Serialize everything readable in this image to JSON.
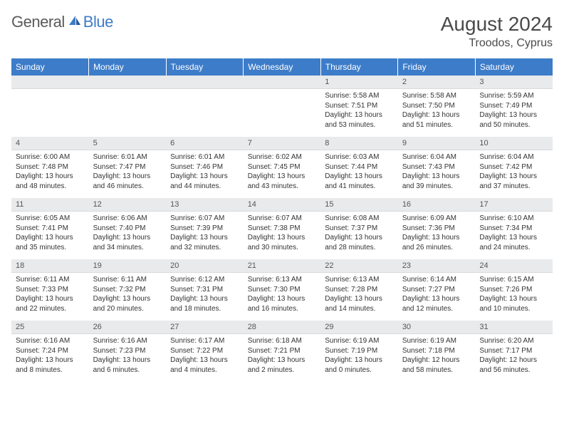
{
  "logo": {
    "text1": "General",
    "text2": "Blue"
  },
  "title": {
    "month": "August 2024",
    "location": "Troodos, Cyprus"
  },
  "colors": {
    "header_bg": "#3d7cc9",
    "daynum_bg": "#e8eaec",
    "text": "#333333"
  },
  "weekdays": [
    "Sunday",
    "Monday",
    "Tuesday",
    "Wednesday",
    "Thursday",
    "Friday",
    "Saturday"
  ],
  "weeks": [
    [
      null,
      null,
      null,
      null,
      {
        "n": "1",
        "sunrise": "Sunrise: 5:58 AM",
        "sunset": "Sunset: 7:51 PM",
        "daylight": "Daylight: 13 hours and 53 minutes."
      },
      {
        "n": "2",
        "sunrise": "Sunrise: 5:58 AM",
        "sunset": "Sunset: 7:50 PM",
        "daylight": "Daylight: 13 hours and 51 minutes."
      },
      {
        "n": "3",
        "sunrise": "Sunrise: 5:59 AM",
        "sunset": "Sunset: 7:49 PM",
        "daylight": "Daylight: 13 hours and 50 minutes."
      }
    ],
    [
      {
        "n": "4",
        "sunrise": "Sunrise: 6:00 AM",
        "sunset": "Sunset: 7:48 PM",
        "daylight": "Daylight: 13 hours and 48 minutes."
      },
      {
        "n": "5",
        "sunrise": "Sunrise: 6:01 AM",
        "sunset": "Sunset: 7:47 PM",
        "daylight": "Daylight: 13 hours and 46 minutes."
      },
      {
        "n": "6",
        "sunrise": "Sunrise: 6:01 AM",
        "sunset": "Sunset: 7:46 PM",
        "daylight": "Daylight: 13 hours and 44 minutes."
      },
      {
        "n": "7",
        "sunrise": "Sunrise: 6:02 AM",
        "sunset": "Sunset: 7:45 PM",
        "daylight": "Daylight: 13 hours and 43 minutes."
      },
      {
        "n": "8",
        "sunrise": "Sunrise: 6:03 AM",
        "sunset": "Sunset: 7:44 PM",
        "daylight": "Daylight: 13 hours and 41 minutes."
      },
      {
        "n": "9",
        "sunrise": "Sunrise: 6:04 AM",
        "sunset": "Sunset: 7:43 PM",
        "daylight": "Daylight: 13 hours and 39 minutes."
      },
      {
        "n": "10",
        "sunrise": "Sunrise: 6:04 AM",
        "sunset": "Sunset: 7:42 PM",
        "daylight": "Daylight: 13 hours and 37 minutes."
      }
    ],
    [
      {
        "n": "11",
        "sunrise": "Sunrise: 6:05 AM",
        "sunset": "Sunset: 7:41 PM",
        "daylight": "Daylight: 13 hours and 35 minutes."
      },
      {
        "n": "12",
        "sunrise": "Sunrise: 6:06 AM",
        "sunset": "Sunset: 7:40 PM",
        "daylight": "Daylight: 13 hours and 34 minutes."
      },
      {
        "n": "13",
        "sunrise": "Sunrise: 6:07 AM",
        "sunset": "Sunset: 7:39 PM",
        "daylight": "Daylight: 13 hours and 32 minutes."
      },
      {
        "n": "14",
        "sunrise": "Sunrise: 6:07 AM",
        "sunset": "Sunset: 7:38 PM",
        "daylight": "Daylight: 13 hours and 30 minutes."
      },
      {
        "n": "15",
        "sunrise": "Sunrise: 6:08 AM",
        "sunset": "Sunset: 7:37 PM",
        "daylight": "Daylight: 13 hours and 28 minutes."
      },
      {
        "n": "16",
        "sunrise": "Sunrise: 6:09 AM",
        "sunset": "Sunset: 7:36 PM",
        "daylight": "Daylight: 13 hours and 26 minutes."
      },
      {
        "n": "17",
        "sunrise": "Sunrise: 6:10 AM",
        "sunset": "Sunset: 7:34 PM",
        "daylight": "Daylight: 13 hours and 24 minutes."
      }
    ],
    [
      {
        "n": "18",
        "sunrise": "Sunrise: 6:11 AM",
        "sunset": "Sunset: 7:33 PM",
        "daylight": "Daylight: 13 hours and 22 minutes."
      },
      {
        "n": "19",
        "sunrise": "Sunrise: 6:11 AM",
        "sunset": "Sunset: 7:32 PM",
        "daylight": "Daylight: 13 hours and 20 minutes."
      },
      {
        "n": "20",
        "sunrise": "Sunrise: 6:12 AM",
        "sunset": "Sunset: 7:31 PM",
        "daylight": "Daylight: 13 hours and 18 minutes."
      },
      {
        "n": "21",
        "sunrise": "Sunrise: 6:13 AM",
        "sunset": "Sunset: 7:30 PM",
        "daylight": "Daylight: 13 hours and 16 minutes."
      },
      {
        "n": "22",
        "sunrise": "Sunrise: 6:13 AM",
        "sunset": "Sunset: 7:28 PM",
        "daylight": "Daylight: 13 hours and 14 minutes."
      },
      {
        "n": "23",
        "sunrise": "Sunrise: 6:14 AM",
        "sunset": "Sunset: 7:27 PM",
        "daylight": "Daylight: 13 hours and 12 minutes."
      },
      {
        "n": "24",
        "sunrise": "Sunrise: 6:15 AM",
        "sunset": "Sunset: 7:26 PM",
        "daylight": "Daylight: 13 hours and 10 minutes."
      }
    ],
    [
      {
        "n": "25",
        "sunrise": "Sunrise: 6:16 AM",
        "sunset": "Sunset: 7:24 PM",
        "daylight": "Daylight: 13 hours and 8 minutes."
      },
      {
        "n": "26",
        "sunrise": "Sunrise: 6:16 AM",
        "sunset": "Sunset: 7:23 PM",
        "daylight": "Daylight: 13 hours and 6 minutes."
      },
      {
        "n": "27",
        "sunrise": "Sunrise: 6:17 AM",
        "sunset": "Sunset: 7:22 PM",
        "daylight": "Daylight: 13 hours and 4 minutes."
      },
      {
        "n": "28",
        "sunrise": "Sunrise: 6:18 AM",
        "sunset": "Sunset: 7:21 PM",
        "daylight": "Daylight: 13 hours and 2 minutes."
      },
      {
        "n": "29",
        "sunrise": "Sunrise: 6:19 AM",
        "sunset": "Sunset: 7:19 PM",
        "daylight": "Daylight: 13 hours and 0 minutes."
      },
      {
        "n": "30",
        "sunrise": "Sunrise: 6:19 AM",
        "sunset": "Sunset: 7:18 PM",
        "daylight": "Daylight: 12 hours and 58 minutes."
      },
      {
        "n": "31",
        "sunrise": "Sunrise: 6:20 AM",
        "sunset": "Sunset: 7:17 PM",
        "daylight": "Daylight: 12 hours and 56 minutes."
      }
    ]
  ]
}
